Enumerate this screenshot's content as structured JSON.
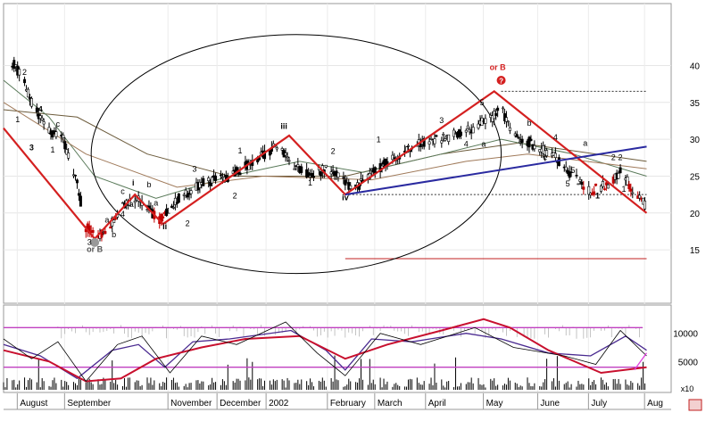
{
  "chart_data": [
    {
      "type": "candlestick",
      "panel": "price",
      "ylim": [
        10,
        45
      ],
      "y_ticks": [
        15,
        20,
        25,
        30,
        35,
        40
      ],
      "grid": true,
      "x_month_labels": [
        "August",
        "September",
        "November",
        "December",
        "2002",
        "February",
        "March",
        "April",
        "May",
        "June",
        "July",
        "Aug"
      ],
      "x_label_dates": [
        "2001-08-12",
        "2001-09-08",
        "2001-11-06",
        "2001-12-04",
        "2002-01-01",
        "2002-02-05",
        "2002-03-04",
        "2002-04-02",
        "2002-05-05",
        "2002-06-05",
        "2002-07-04",
        "2002-08-05"
      ],
      "colors": {
        "zigzag": "#d42020",
        "trendline": "#2a2aa0",
        "ellipse": "#000000",
        "target_line": "#c02020",
        "bar": "#000000",
        "pivot_marker": "#d42020"
      },
      "close_path": [
        [
          "2001-07-29",
          41
        ],
        [
          "2001-08-05",
          38
        ],
        [
          "2001-08-12",
          34
        ],
        [
          "2001-08-20",
          31
        ],
        [
          "2001-08-28",
          30
        ],
        [
          "2001-09-05",
          24
        ],
        [
          "2001-09-10",
          18
        ],
        [
          "2001-09-17",
          17
        ],
        [
          "2001-09-22",
          17.5
        ],
        [
          "2001-09-30",
          21
        ],
        [
          "2001-10-10",
          22
        ],
        [
          "2001-10-22",
          19
        ],
        [
          "2001-11-02",
          22
        ],
        [
          "2001-11-15",
          24
        ],
        [
          "2001-12-01",
          25
        ],
        [
          "2001-12-15",
          27
        ],
        [
          "2001-12-27",
          29
        ],
        [
          "2002-01-05",
          27
        ],
        [
          "2002-01-15",
          25
        ],
        [
          "2002-01-25",
          26
        ],
        [
          "2002-02-01",
          25
        ],
        [
          "2002-02-10",
          23
        ],
        [
          "2002-02-20",
          25.5
        ],
        [
          "2002-03-02",
          27
        ],
        [
          "2002-03-15",
          29
        ],
        [
          "2002-03-30",
          30
        ],
        [
          "2002-04-15",
          31
        ],
        [
          "2002-04-30",
          33
        ],
        [
          "2002-05-05",
          34
        ],
        [
          "2002-05-12",
          31
        ],
        [
          "2002-05-25",
          29
        ],
        [
          "2002-06-05",
          27.5
        ],
        [
          "2002-06-15",
          25
        ],
        [
          "2002-06-25",
          23
        ],
        [
          "2002-07-05",
          24
        ],
        [
          "2002-07-12",
          25.5
        ],
        [
          "2002-07-20",
          23
        ],
        [
          "2002-07-26",
          21
        ]
      ],
      "zigzag": [
        [
          "2001-07-25",
          31.5
        ],
        [
          "2001-09-15",
          16.5
        ],
        [
          "2001-10-08",
          22.5
        ],
        [
          "2001-10-24",
          18.5
        ],
        [
          "2002-01-04",
          30.5
        ],
        [
          "2002-02-05",
          22.5
        ],
        [
          "2002-05-01",
          36.5
        ],
        [
          "2002-07-27",
          20
        ]
      ],
      "trendline": [
        [
          "2002-02-05",
          22.5
        ],
        [
          "2002-07-27",
          29
        ]
      ],
      "ellipse": {
        "center": [
          "2002-01-08",
          28
        ],
        "x_half_span_days": 117,
        "y_half_span": 16.2
      },
      "dotted_levels": [
        {
          "y": 36.5,
          "from": "2002-05-05",
          "to": "2002-07-27"
        },
        {
          "y": 22.5,
          "from": "2002-02-05",
          "to": "2002-07-27"
        }
      ],
      "target_line": {
        "y": 13.8,
        "from": "2002-02-05",
        "to": "2002-07-27"
      },
      "moving_averages": [
        {
          "color": "#6b5a3a",
          "points": [
            [
              "2001-07-25",
              34
            ],
            [
              "2001-09-05",
              33
            ],
            [
              "2001-10-15",
              28
            ],
            [
              "2001-12-01",
              25
            ],
            [
              "2002-02-05",
              25
            ],
            [
              "2002-04-01",
              28
            ],
            [
              "2002-05-15",
              29.5
            ],
            [
              "2002-07-27",
              27
            ]
          ]
        },
        {
          "color": "#5a7a5a",
          "points": [
            [
              "2001-07-25",
              38
            ],
            [
              "2001-08-20",
              33
            ],
            [
              "2001-09-15",
              25
            ],
            [
              "2001-10-20",
              22
            ],
            [
              "2001-12-01",
              25
            ],
            [
              "2002-01-10",
              27
            ],
            [
              "2002-02-15",
              25.5
            ],
            [
              "2002-04-01",
              28
            ],
            [
              "2002-05-05",
              30
            ],
            [
              "2002-06-15",
              28
            ],
            [
              "2002-07-27",
              25
            ]
          ]
        },
        {
          "color": "#a07a5a",
          "points": [
            [
              "2001-07-25",
              35
            ],
            [
              "2001-09-10",
              28
            ],
            [
              "2001-11-01",
              23.5
            ],
            [
              "2001-12-20",
              25
            ],
            [
              "2002-02-20",
              24.5
            ],
            [
              "2002-04-15",
              27
            ],
            [
              "2002-05-20",
              28
            ],
            [
              "2002-07-27",
              26
            ]
          ]
        }
      ],
      "wave_labels": [
        {
          "text": "3",
          "x": "2001-08-10",
          "y": 28.5,
          "color": "#000000",
          "bold": true
        },
        {
          "text": "4",
          "x": "2001-08-15",
          "y": 33.7,
          "color": "#000000",
          "bold": true
        },
        {
          "text": "1",
          "x": "2001-08-02",
          "y": 32.3,
          "color": "#000000",
          "bold": false
        },
        {
          "text": "2",
          "x": "2001-08-06",
          "y": 38.7,
          "color": "#000000",
          "bold": false
        },
        {
          "text": "1",
          "x": "2001-08-22",
          "y": 28.2,
          "color": "#000000",
          "bold": false
        },
        {
          "text": "c",
          "x": "2001-08-25",
          "y": 31.7,
          "color": "#000000",
          "bold": false
        },
        {
          "text": "3",
          "x": "2001-09-12",
          "y": 15.7,
          "color": "#000000",
          "bold": false
        },
        {
          "text": "a",
          "x": "2001-09-22",
          "y": 18.7,
          "color": "#000000",
          "bold": false
        },
        {
          "text": "b",
          "x": "2001-09-26",
          "y": 16.7,
          "color": "#000000",
          "bold": false
        },
        {
          "text": "c",
          "x": "2001-10-01",
          "y": 22.6,
          "color": "#000000",
          "bold": false
        },
        {
          "text": "4",
          "x": "2001-10-01",
          "y": 19.5,
          "color": "#000000",
          "bold": false
        },
        {
          "text": "a",
          "x": "2001-10-06",
          "y": 20.8,
          "color": "#000000",
          "bold": false
        },
        {
          "text": "i",
          "x": "2001-10-07",
          "y": 23.7,
          "color": "#000000",
          "bold": true
        },
        {
          "text": "b",
          "x": "2001-10-16",
          "y": 23.5,
          "color": "#000000",
          "bold": false
        },
        {
          "text": "a",
          "x": "2001-10-20",
          "y": 21.0,
          "color": "#000000",
          "bold": false
        },
        {
          "text": "1",
          "x": "2001-10-27",
          "y": 19.9,
          "color": "#000000",
          "bold": false
        },
        {
          "text": "ii",
          "x": "2001-10-25",
          "y": 17.8,
          "color": "#000000",
          "bold": true
        },
        {
          "text": "2",
          "x": "2001-11-07",
          "y": 18.2,
          "color": "#000000",
          "bold": false
        },
        {
          "text": "3",
          "x": "2001-11-11",
          "y": 25.6,
          "color": "#000000",
          "bold": false
        },
        {
          "text": "2",
          "x": "2001-12-04",
          "y": 22.0,
          "color": "#000000",
          "bold": false
        },
        {
          "text": "1",
          "x": "2001-12-07",
          "y": 28.1,
          "color": "#000000",
          "bold": false
        },
        {
          "text": "iii",
          "x": "2002-01-01",
          "y": 31.4,
          "color": "#000000",
          "bold": true
        },
        {
          "text": "1",
          "x": "2002-01-16",
          "y": 23.7,
          "color": "#000000",
          "bold": false
        },
        {
          "text": "2",
          "x": "2002-01-29",
          "y": 28.0,
          "color": "#000000",
          "bold": false
        },
        {
          "text": "iv",
          "x": "2002-02-05",
          "y": 21.7,
          "color": "#000000",
          "bold": true
        },
        {
          "text": "1",
          "x": "2002-02-24",
          "y": 29.6,
          "color": "#000000",
          "bold": false
        },
        {
          "text": "2",
          "x": "2002-02-22",
          "y": 25.5,
          "color": "#000000",
          "bold": false
        },
        {
          "text": "3",
          "x": "2002-04-01",
          "y": 32.2,
          "color": "#000000",
          "bold": false
        },
        {
          "text": "4",
          "x": "2002-04-15",
          "y": 29.0,
          "color": "#000000",
          "bold": false
        },
        {
          "text": "5",
          "x": "2002-04-24",
          "y": 34.6,
          "color": "#000000",
          "bold": false
        },
        {
          "text": "a",
          "x": "2002-04-25",
          "y": 29.0,
          "color": "#000000",
          "bold": false
        },
        {
          "text": "b",
          "x": "2002-05-21",
          "y": 31.8,
          "color": "#000000",
          "bold": false
        },
        {
          "text": "a",
          "x": "2002-05-16",
          "y": 29.4,
          "color": "#000000",
          "bold": false
        },
        {
          "text": "4",
          "x": "2002-06-05",
          "y": 29.9,
          "color": "#000000",
          "bold": false
        },
        {
          "text": "c",
          "x": "2002-05-30",
          "y": 27.2,
          "color": "#000000",
          "bold": false
        },
        {
          "text": "5",
          "x": "2002-06-15",
          "y": 25.4,
          "color": "#000000",
          "bold": false
        },
        {
          "text": "a",
          "x": "2002-06-22",
          "y": 29.1,
          "color": "#000000",
          "bold": false
        },
        {
          "text": "5",
          "x": "2002-06-12",
          "y": 23.6,
          "color": "#000000",
          "bold": false
        },
        {
          "text": "1",
          "x": "2002-06-29",
          "y": 22.0,
          "color": "#000000",
          "bold": true
        },
        {
          "text": "2",
          "x": "2002-07-08",
          "y": 27.2,
          "color": "#000000",
          "bold": false
        },
        {
          "text": "2",
          "x": "2002-07-12",
          "y": 27.2,
          "color": "#000000",
          "bold": false
        },
        {
          "text": "1",
          "x": "2002-07-14",
          "y": 22.9,
          "color": "#000000",
          "bold": false
        },
        {
          "text": "or B",
          "x": "2002-05-03",
          "y": 39.4,
          "color": "#d42020",
          "bold": true
        },
        {
          "text": "or B",
          "x": "2001-09-15",
          "y": 14.7,
          "color": "#555555",
          "bold": true
        }
      ],
      "pivot_markers": [
        {
          "text": "?",
          "x": "2002-05-05",
          "y": 38.0,
          "fill": "#d42020",
          "text_color": "#ffffff"
        },
        {
          "x": "2001-09-15",
          "y": 16.0,
          "fill": "#999999"
        }
      ]
    },
    {
      "type": "oscillator",
      "panel": "indicator",
      "ylim": [
        0,
        15000
      ],
      "y_ticks": [
        5000,
        10000
      ],
      "scale_label": "x10",
      "bands": [
        {
          "y": 11000,
          "color": "#c040c0"
        },
        {
          "y": 4000,
          "color": "#c040c0"
        }
      ],
      "colors": {
        "fast": "#4a2a90",
        "slow": "#c8102e",
        "raw": "#000000",
        "volume": "#000000",
        "tail": "#e040e0"
      },
      "series": [
        {
          "key": "fast",
          "points": [
            [
              "2001-07-25",
              8000
            ],
            [
              "2001-08-15",
              6000
            ],
            [
              "2001-09-05",
              2000
            ],
            [
              "2001-09-25",
              7000
            ],
            [
              "2001-10-10",
              8000
            ],
            [
              "2001-10-25",
              4000
            ],
            [
              "2001-11-10",
              8500
            ],
            [
              "2001-12-01",
              9000
            ],
            [
              "2002-01-05",
              10500
            ],
            [
              "2002-01-25",
              7000
            ],
            [
              "2002-02-05",
              3500
            ],
            [
              "2002-02-20",
              9000
            ],
            [
              "2002-03-15",
              8500
            ],
            [
              "2002-04-15",
              10000
            ],
            [
              "2002-05-05",
              9000
            ],
            [
              "2002-06-01",
              6500
            ],
            [
              "2002-06-25",
              6000
            ],
            [
              "2002-07-15",
              9500
            ],
            [
              "2002-07-27",
              7000
            ]
          ]
        },
        {
          "key": "slow",
          "points": [
            [
              "2001-07-25",
              7000
            ],
            [
              "2001-08-20",
              5000
            ],
            [
              "2001-09-10",
              1500
            ],
            [
              "2001-09-30",
              2000
            ],
            [
              "2001-10-20",
              5500
            ],
            [
              "2001-11-15",
              7500
            ],
            [
              "2001-12-10",
              9000
            ],
            [
              "2002-01-10",
              9500
            ],
            [
              "2002-02-05",
              5500
            ],
            [
              "2002-03-01",
              8000
            ],
            [
              "2002-04-01",
              10500
            ],
            [
              "2002-04-25",
              12500
            ],
            [
              "2002-05-10",
              11000
            ],
            [
              "2002-06-01",
              7000
            ],
            [
              "2002-07-01",
              3000
            ],
            [
              "2002-07-27",
              4000
            ]
          ]
        },
        {
          "key": "raw",
          "points": [
            [
              "2001-07-25",
              9000
            ],
            [
              "2001-08-10",
              5500
            ],
            [
              "2001-08-25",
              8500
            ],
            [
              "2001-09-10",
              1500
            ],
            [
              "2001-09-28",
              8000
            ],
            [
              "2001-10-12",
              9500
            ],
            [
              "2001-10-28",
              3000
            ],
            [
              "2001-11-15",
              9500
            ],
            [
              "2001-12-05",
              8000
            ],
            [
              "2002-01-02",
              12000
            ],
            [
              "2002-01-20",
              6500
            ],
            [
              "2002-02-05",
              2500
            ],
            [
              "2002-02-25",
              10000
            ],
            [
              "2002-03-20",
              8000
            ],
            [
              "2002-04-20",
              11000
            ],
            [
              "2002-05-12",
              7500
            ],
            [
              "2002-06-10",
              6000
            ],
            [
              "2002-06-28",
              4500
            ],
            [
              "2002-07-12",
              10500
            ],
            [
              "2002-07-27",
              6000
            ]
          ]
        },
        {
          "key": "tail",
          "points": [
            [
              "2002-07-20",
              3500
            ],
            [
              "2002-07-27",
              6500
            ]
          ]
        }
      ]
    }
  ]
}
